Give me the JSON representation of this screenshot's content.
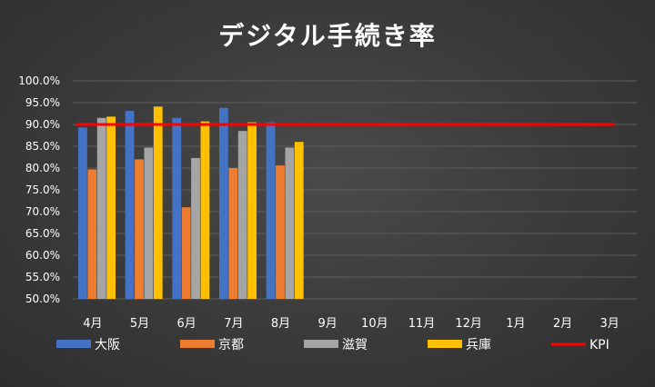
{
  "chart_data": {
    "type": "bar",
    "title": "デジタル手続き率",
    "categories": [
      "4月",
      "5月",
      "6月",
      "7月",
      "8月",
      "9月",
      "10月",
      "11月",
      "12月",
      "1月",
      "2月",
      "3月"
    ],
    "series": [
      {
        "name": "大阪",
        "color": "#4472c4",
        "values": [
          89.3,
          93.1,
          91.5,
          93.8,
          90.5,
          null,
          null,
          null,
          null,
          null,
          null,
          null
        ]
      },
      {
        "name": "京都",
        "color": "#ed7d31",
        "values": [
          79.7,
          82.0,
          71.0,
          80.0,
          80.6,
          null,
          null,
          null,
          null,
          null,
          null,
          null
        ]
      },
      {
        "name": "滋賀",
        "color": "#a5a5a5",
        "values": [
          91.5,
          84.7,
          82.3,
          88.5,
          84.7,
          null,
          null,
          null,
          null,
          null,
          null,
          null
        ]
      },
      {
        "name": "兵庫",
        "color": "#ffc000",
        "values": [
          91.8,
          94.1,
          90.7,
          90.5,
          86.0,
          null,
          null,
          null,
          null,
          null,
          null,
          null
        ]
      }
    ],
    "reference_line": {
      "name": "KPI",
      "value": 90.0,
      "color": "#ff0000"
    },
    "ylim": [
      50,
      100
    ],
    "yticks": [
      "100.0%",
      "95.0%",
      "90.0%",
      "85.0%",
      "80.0%",
      "75.0%",
      "70.0%",
      "65.0%",
      "60.0%",
      "55.0%",
      "50.0%"
    ],
    "ytick_values": [
      100,
      95,
      90,
      85,
      80,
      75,
      70,
      65,
      60,
      55,
      50
    ],
    "grid": true,
    "legend_position": "bottom",
    "xlabel": "",
    "ylabel": ""
  }
}
